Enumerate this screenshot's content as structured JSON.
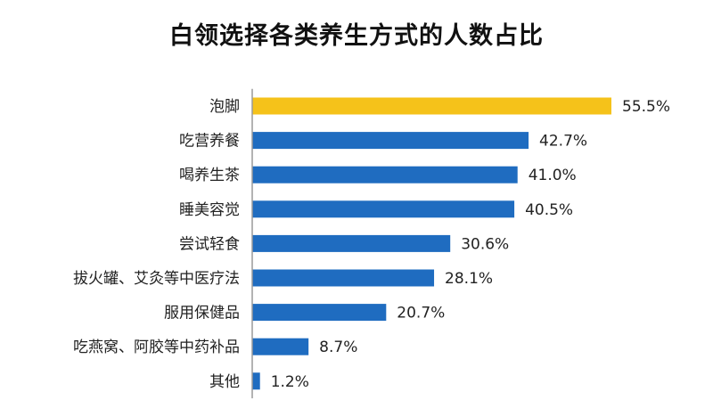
{
  "chart_data": {
    "type": "bar",
    "orientation": "horizontal",
    "title": "白领选择各类养生方式的人数占比",
    "categories": [
      "泡脚",
      "吃营养餐",
      "喝养生茶",
      "睡美容觉",
      "尝试轻食",
      "拔火罐、艾灸等中医疗法",
      "服用保健品",
      "吃燕窝、阿胶等中药补品",
      "其他"
    ],
    "values": [
      55.5,
      42.7,
      41.0,
      40.5,
      30.6,
      28.1,
      20.7,
      8.7,
      1.2
    ],
    "value_labels": [
      "55.5%",
      "42.7%",
      "41.0%",
      "40.5%",
      "30.6%",
      "28.1%",
      "20.7%",
      "8.7%",
      "1.2%"
    ],
    "xlim": [
      0,
      60
    ],
    "grid": false,
    "legend": "none",
    "colors": {
      "highlight": "#F5C21A",
      "default": "#1F6CC0"
    },
    "highlight_index": 0
  }
}
